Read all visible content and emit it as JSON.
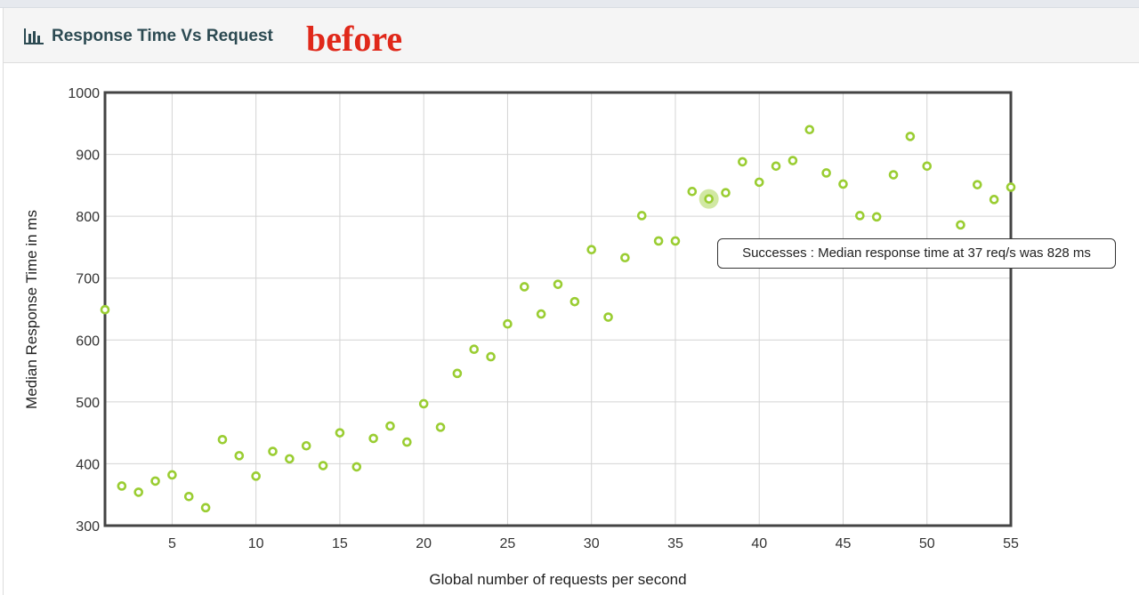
{
  "header": {
    "title": "Response Time Vs Request",
    "icon": "bar-chart-icon",
    "note": "before"
  },
  "tooltip": {
    "text": "Successes : Median response time at 37 req/s was 828 ms"
  },
  "chart_data": {
    "type": "scatter",
    "title": "Response Time Vs Request",
    "xlabel": "Global number of requests per second",
    "ylabel": "Median Response Time in ms",
    "xlim": [
      1,
      55
    ],
    "ylim": [
      300,
      1000
    ],
    "x_ticks": [
      5,
      10,
      15,
      20,
      25,
      30,
      35,
      40,
      45,
      50,
      55
    ],
    "y_ticks": [
      300,
      400,
      500,
      600,
      700,
      800,
      900,
      1000
    ],
    "grid": true,
    "point_color": "#9acd32",
    "highlighted_point": {
      "x": 37,
      "y": 828
    },
    "series": [
      {
        "name": "Successes",
        "points": [
          {
            "x": 1,
            "y": 649
          },
          {
            "x": 2,
            "y": 364
          },
          {
            "x": 3,
            "y": 354
          },
          {
            "x": 4,
            "y": 372
          },
          {
            "x": 5,
            "y": 382
          },
          {
            "x": 6,
            "y": 347
          },
          {
            "x": 7,
            "y": 329
          },
          {
            "x": 8,
            "y": 439
          },
          {
            "x": 9,
            "y": 413
          },
          {
            "x": 10,
            "y": 380
          },
          {
            "x": 11,
            "y": 420
          },
          {
            "x": 12,
            "y": 408
          },
          {
            "x": 13,
            "y": 429
          },
          {
            "x": 14,
            "y": 397
          },
          {
            "x": 15,
            "y": 450
          },
          {
            "x": 16,
            "y": 395
          },
          {
            "x": 17,
            "y": 441
          },
          {
            "x": 18,
            "y": 461
          },
          {
            "x": 19,
            "y": 435
          },
          {
            "x": 20,
            "y": 497
          },
          {
            "x": 21,
            "y": 459
          },
          {
            "x": 22,
            "y": 546
          },
          {
            "x": 23,
            "y": 585
          },
          {
            "x": 24,
            "y": 573
          },
          {
            "x": 25,
            "y": 626
          },
          {
            "x": 26,
            "y": 686
          },
          {
            "x": 27,
            "y": 642
          },
          {
            "x": 28,
            "y": 690
          },
          {
            "x": 29,
            "y": 662
          },
          {
            "x": 30,
            "y": 746
          },
          {
            "x": 31,
            "y": 637
          },
          {
            "x": 32,
            "y": 733
          },
          {
            "x": 33,
            "y": 801
          },
          {
            "x": 34,
            "y": 760
          },
          {
            "x": 35,
            "y": 760
          },
          {
            "x": 36,
            "y": 840
          },
          {
            "x": 37,
            "y": 828
          },
          {
            "x": 38,
            "y": 838
          },
          {
            "x": 39,
            "y": 888
          },
          {
            "x": 40,
            "y": 855
          },
          {
            "x": 41,
            "y": 881
          },
          {
            "x": 42,
            "y": 890
          },
          {
            "x": 43,
            "y": 940
          },
          {
            "x": 44,
            "y": 870
          },
          {
            "x": 45,
            "y": 852
          },
          {
            "x": 46,
            "y": 801
          },
          {
            "x": 47,
            "y": 799
          },
          {
            "x": 48,
            "y": 867
          },
          {
            "x": 49,
            "y": 929
          },
          {
            "x": 50,
            "y": 881
          },
          {
            "x": 52,
            "y": 786
          },
          {
            "x": 53,
            "y": 851
          },
          {
            "x": 54,
            "y": 827
          },
          {
            "x": 55,
            "y": 847
          }
        ]
      }
    ]
  }
}
